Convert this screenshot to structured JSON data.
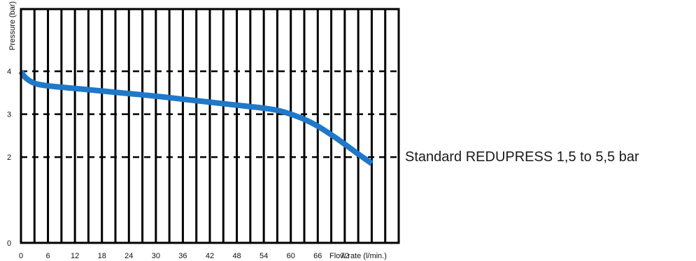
{
  "chart_data": {
    "type": "line",
    "title": "",
    "xlabel": "Flow rate (l/min.)",
    "ylabel": "Pressure (bar)",
    "xlim": [
      0,
      84
    ],
    "ylim": [
      0,
      5.45
    ],
    "x_ticks": [
      "0",
      "6",
      "12",
      "18",
      "24",
      "30",
      "36",
      "42",
      "48",
      "54",
      "60",
      "66",
      "72"
    ],
    "y_ticks": [
      "0",
      "2",
      "3",
      "4"
    ],
    "dashed_gridlines_y": [
      2,
      3,
      4
    ],
    "vertical_grid_step": 3,
    "grid": true,
    "series": [
      {
        "color": "#1f78c8",
        "x": [
          0,
          1,
          3,
          6,
          12,
          18,
          24,
          30,
          36,
          42,
          48,
          54,
          57,
          60,
          63,
          66,
          69,
          72,
          75,
          78
        ],
        "y": [
          4.0,
          3.85,
          3.72,
          3.66,
          3.6,
          3.54,
          3.48,
          3.42,
          3.35,
          3.28,
          3.21,
          3.14,
          3.09,
          3.0,
          2.88,
          2.72,
          2.52,
          2.3,
          2.07,
          1.85
        ]
      }
    ]
  },
  "caption": "Standard REDUPRESS 1,5 to 5,5 bar"
}
